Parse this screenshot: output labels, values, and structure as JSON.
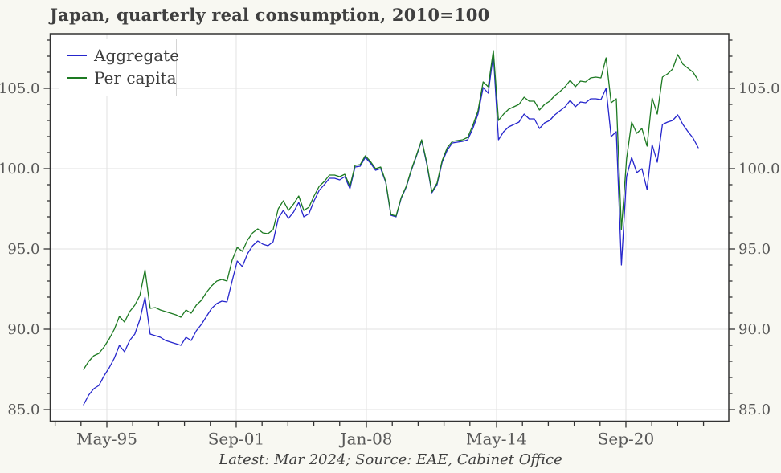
{
  "caption": "Latest: Mar 2024; Source: EAE, Cabinet Office",
  "colors": {
    "page_background": "#f8f8f2",
    "plot_background": "#ffffff",
    "grid": "#e2e2e2",
    "axis": "#333333",
    "tick_label": "#585858",
    "title_text": "#3f3f3f"
  },
  "chart_data": {
    "type": "line",
    "title": "Japan, quarterly real consumption, 2010=100",
    "xlabel": "",
    "ylabel": "",
    "index_base": "2010=100",
    "frequency": "quarterly",
    "x_start": "1994-Q1",
    "x_end": "2024-Q1",
    "grid": true,
    "legend_position": "top-left",
    "ylim": [
      84.3,
      108.4
    ],
    "y_major_ticks": [
      85,
      90,
      95,
      100,
      105
    ],
    "y_tick_format": "one-decimal",
    "y_minor_step": 1,
    "x_ticks": [
      {
        "label": "May-95",
        "pos": 4.55
      },
      {
        "label": "Sep-01",
        "pos": 29.8
      },
      {
        "label": "Jan-08",
        "pos": 55.22
      },
      {
        "label": "May-14",
        "pos": 80.63
      },
      {
        "label": "Sep-20",
        "pos": 105.88
      }
    ],
    "x_minor_divisions": 5,
    "series": [
      {
        "name": "Aggregate",
        "color": "#2626cc",
        "values": [
          85.3,
          85.9,
          86.3,
          86.5,
          87.1,
          87.6,
          88.2,
          89.0,
          88.6,
          89.3,
          89.7,
          90.6,
          92.0,
          89.7,
          89.6,
          89.5,
          89.3,
          89.2,
          89.1,
          89.0,
          89.5,
          89.3,
          89.9,
          90.3,
          90.8,
          91.3,
          91.6,
          91.75,
          91.7,
          93.0,
          94.25,
          93.9,
          94.7,
          95.2,
          95.5,
          95.3,
          95.2,
          95.45,
          96.9,
          97.4,
          96.9,
          97.3,
          97.9,
          97.0,
          97.2,
          98.0,
          98.65,
          99.0,
          99.4,
          99.4,
          99.3,
          99.5,
          98.75,
          100.1,
          100.15,
          100.7,
          100.35,
          99.9,
          100.0,
          99.15,
          97.1,
          97.0,
          98.15,
          98.85,
          99.9,
          100.8,
          101.75,
          100.3,
          98.5,
          99.0,
          100.4,
          101.15,
          101.6,
          101.65,
          101.7,
          101.8,
          102.5,
          103.4,
          105.05,
          104.7,
          107.1,
          101.8,
          102.3,
          102.6,
          102.75,
          102.9,
          103.4,
          103.1,
          103.1,
          102.5,
          102.85,
          103.0,
          103.35,
          103.6,
          103.85,
          104.25,
          103.85,
          104.15,
          104.1,
          104.35,
          104.35,
          104.3,
          105.0,
          102.0,
          102.3,
          94.0,
          99.5,
          100.7,
          99.75,
          100.0,
          98.7,
          101.5,
          100.4,
          102.75,
          102.9,
          103.0,
          103.35,
          102.75,
          102.3,
          101.9,
          101.3
        ]
      },
      {
        "name": "Per capita",
        "color": "#1d7a22",
        "values": [
          87.5,
          88.0,
          88.35,
          88.5,
          88.9,
          89.4,
          90.0,
          90.8,
          90.45,
          91.1,
          91.5,
          92.1,
          93.7,
          91.3,
          91.35,
          91.2,
          91.1,
          91.0,
          90.9,
          90.75,
          91.2,
          91.0,
          91.5,
          91.8,
          92.3,
          92.7,
          93.0,
          93.1,
          93.0,
          94.3,
          95.1,
          94.85,
          95.55,
          96.0,
          96.25,
          96.0,
          95.95,
          96.2,
          97.5,
          98.0,
          97.4,
          97.8,
          98.3,
          97.4,
          97.6,
          98.3,
          98.9,
          99.2,
          99.6,
          99.6,
          99.5,
          99.65,
          98.9,
          100.2,
          100.25,
          100.8,
          100.45,
          100.0,
          100.1,
          99.2,
          97.15,
          97.05,
          98.2,
          98.9,
          99.95,
          100.85,
          101.8,
          100.4,
          98.55,
          99.1,
          100.5,
          101.3,
          101.7,
          101.75,
          101.8,
          101.95,
          102.7,
          103.6,
          105.4,
          105.1,
          107.35,
          103.0,
          103.4,
          103.7,
          103.85,
          104.0,
          104.45,
          104.2,
          104.2,
          103.65,
          104.0,
          104.2,
          104.55,
          104.8,
          105.1,
          105.5,
          105.1,
          105.45,
          105.4,
          105.65,
          105.7,
          105.65,
          106.9,
          104.1,
          104.35,
          96.2,
          100.6,
          102.9,
          102.2,
          102.5,
          101.4,
          104.4,
          103.4,
          105.7,
          105.9,
          106.2,
          107.1,
          106.5,
          106.25,
          106.0,
          105.5
        ]
      }
    ]
  }
}
